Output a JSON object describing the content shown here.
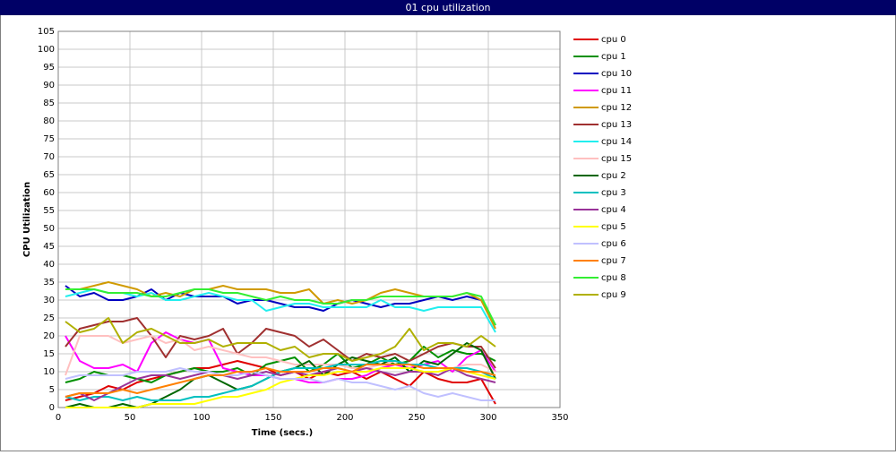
{
  "chart_data": {
    "type": "line",
    "title": "01 cpu utilization",
    "x_label": "Time (secs.)",
    "y_label": "CPU Utilization",
    "xlim": [
      0,
      350
    ],
    "xticks": [
      0,
      50,
      100,
      150,
      200,
      250,
      300,
      350
    ],
    "ylim": [
      0,
      105
    ],
    "yticks": [
      0,
      5,
      10,
      15,
      20,
      25,
      30,
      35,
      40,
      45,
      50,
      55,
      60,
      65,
      70,
      75,
      80,
      85,
      90,
      95,
      100,
      105
    ],
    "grid": true,
    "legend": "right",
    "x": [
      5,
      15,
      25,
      35,
      45,
      55,
      65,
      75,
      85,
      95,
      105,
      115,
      125,
      135,
      145,
      155,
      165,
      175,
      185,
      195,
      205,
      215,
      225,
      235,
      245,
      255,
      265,
      275,
      285,
      295,
      305
    ],
    "series": [
      {
        "name": "cpu 0",
        "color": "#e00000",
        "values": [
          2,
          3,
          4,
          6,
          5,
          7,
          8,
          9,
          10,
          11,
          11,
          12,
          13,
          12,
          11,
          9,
          10,
          8,
          10,
          9,
          10,
          8,
          10,
          8,
          6,
          10,
          8,
          7,
          7,
          8,
          1
        ]
      },
      {
        "name": "cpu 1",
        "color": "#009000",
        "values": [
          7,
          8,
          10,
          9,
          9,
          8,
          7,
          9,
          10,
          11,
          10,
          10,
          11,
          9,
          12,
          13,
          14,
          10,
          12,
          15,
          11,
          12,
          14,
          12,
          13,
          17,
          14,
          16,
          15,
          15,
          13
        ]
      },
      {
        "name": "cpu 10",
        "color": "#0000c0",
        "values": [
          34,
          31,
          32,
          30,
          30,
          31,
          33,
          30,
          32,
          31,
          31,
          31,
          29,
          30,
          30,
          29,
          28,
          28,
          27,
          29,
          30,
          29,
          28,
          29,
          29,
          30,
          31,
          30,
          31,
          30,
          23
        ]
      },
      {
        "name": "cpu 11",
        "color": "#ff00ff",
        "values": [
          20,
          13,
          11,
          11,
          12,
          10,
          18,
          21,
          19,
          18,
          19,
          11,
          10,
          9,
          9,
          8,
          8,
          7,
          7,
          8,
          8,
          9,
          11,
          12,
          11,
          12,
          13,
          10,
          14,
          16,
          10
        ]
      },
      {
        "name": "cpu 12",
        "color": "#d09a00",
        "values": [
          33,
          33,
          34,
          35,
          34,
          33,
          31,
          32,
          31,
          33,
          33,
          34,
          33,
          33,
          33,
          32,
          32,
          33,
          29,
          30,
          29,
          30,
          32,
          33,
          32,
          31,
          31,
          31,
          32,
          30,
          22
        ]
      },
      {
        "name": "cpu 13",
        "color": "#a03030",
        "values": [
          17,
          22,
          23,
          24,
          24,
          25,
          20,
          14,
          20,
          19,
          20,
          22,
          15,
          18,
          22,
          21,
          20,
          17,
          19,
          16,
          13,
          15,
          14,
          15,
          13,
          15,
          17,
          18,
          17,
          17,
          11
        ]
      },
      {
        "name": "cpu 14",
        "color": "#22eeee",
        "values": [
          31,
          32,
          33,
          32,
          32,
          31,
          32,
          30,
          30,
          31,
          32,
          31,
          30,
          30,
          27,
          28,
          29,
          29,
          28,
          28,
          28,
          28,
          30,
          28,
          28,
          27,
          28,
          28,
          28,
          28,
          21
        ]
      },
      {
        "name": "cpu 15",
        "color": "#ffc0c0",
        "values": [
          9,
          20,
          20,
          20,
          18,
          19,
          20,
          18,
          19,
          16,
          17,
          16,
          15,
          14,
          14,
          13,
          12,
          12,
          12,
          12,
          11,
          11,
          12,
          13,
          12,
          12,
          11,
          11,
          12,
          12,
          10
        ]
      },
      {
        "name": "cpu 2",
        "color": "#006600",
        "values": [
          0,
          1,
          0,
          0,
          1,
          0,
          1,
          3,
          5,
          8,
          9,
          7,
          5,
          6,
          8,
          10,
          11,
          13,
          9,
          12,
          14,
          13,
          12,
          14,
          10,
          13,
          12,
          15,
          18,
          16,
          8
        ]
      },
      {
        "name": "cpu 3",
        "color": "#00c0c0",
        "values": [
          3,
          2,
          3,
          3,
          2,
          3,
          2,
          2,
          2,
          3,
          3,
          4,
          5,
          6,
          8,
          10,
          11,
          11,
          11,
          12,
          12,
          12,
          13,
          13,
          12,
          12,
          11,
          11,
          11,
          10,
          8
        ]
      },
      {
        "name": "cpu 4",
        "color": "#993399",
        "values": [
          3,
          4,
          2,
          4,
          6,
          8,
          9,
          9,
          8,
          9,
          10,
          9,
          8,
          9,
          10,
          9,
          10,
          9,
          10,
          11,
          10,
          11,
          10,
          9,
          10,
          10,
          9,
          11,
          9,
          8,
          7
        ]
      },
      {
        "name": "cpu 5",
        "color": "#ffff00",
        "values": [
          0,
          0,
          0,
          0,
          0,
          0,
          1,
          1,
          1,
          1,
          2,
          3,
          3,
          4,
          5,
          7,
          8,
          9,
          9,
          10,
          10,
          10,
          11,
          11,
          11,
          10,
          10,
          11,
          10,
          9,
          8
        ]
      },
      {
        "name": "cpu 6",
        "color": "#c0c0ff",
        "values": [
          8,
          9,
          9,
          9,
          9,
          10,
          10,
          10,
          11,
          10,
          10,
          9,
          9,
          10,
          9,
          8,
          8,
          8,
          7,
          8,
          7,
          7,
          6,
          5,
          6,
          4,
          3,
          4,
          3,
          2,
          2
        ]
      },
      {
        "name": "cpu 7",
        "color": "#ff8000",
        "values": [
          3,
          4,
          4,
          4,
          5,
          4,
          5,
          6,
          7,
          8,
          9,
          9,
          10,
          10,
          11,
          10,
          10,
          10,
          11,
          11,
          10,
          12,
          12,
          12,
          12,
          11,
          11,
          11,
          10,
          10,
          9
        ]
      },
      {
        "name": "cpu 8",
        "color": "#33ee33",
        "values": [
          33,
          33,
          33,
          32,
          32,
          32,
          31,
          31,
          32,
          33,
          33,
          32,
          32,
          31,
          30,
          31,
          30,
          30,
          29,
          29,
          30,
          30,
          31,
          31,
          31,
          31,
          31,
          31,
          32,
          31,
          23
        ]
      },
      {
        "name": "cpu 9",
        "color": "#b0b000",
        "values": [
          24,
          21,
          22,
          25,
          18,
          21,
          22,
          20,
          18,
          18,
          19,
          17,
          18,
          18,
          18,
          16,
          17,
          14,
          15,
          15,
          13,
          14,
          15,
          17,
          22,
          16,
          18,
          18,
          17,
          20,
          17
        ]
      }
    ]
  }
}
